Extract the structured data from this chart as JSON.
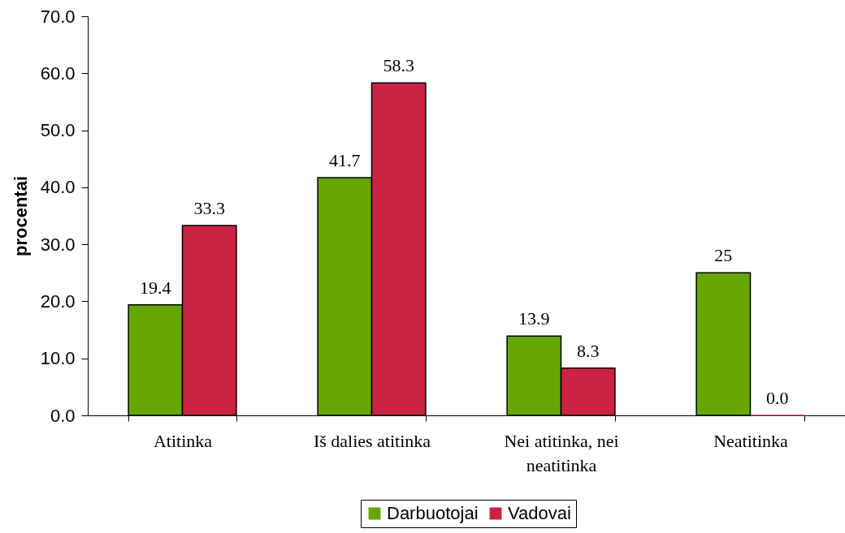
{
  "chart_data": {
    "type": "bar",
    "ylabel": "procentai",
    "categories": [
      "Atitinka",
      "Iš dalies atitinka",
      "Nei atitinka, nei neatitinka",
      "Neatitinka"
    ],
    "series": [
      {
        "name": "Darbuotojai",
        "color": "#66a800",
        "values": [
          19.4,
          41.7,
          13.9,
          25
        ],
        "value_labels": [
          "19.4",
          "41.7",
          "13.9",
          "25"
        ]
      },
      {
        "name": "Vadovai",
        "color": "#cc2244",
        "values": [
          33.3,
          58.3,
          8.3,
          0.0
        ],
        "value_labels": [
          "33.3",
          "58.3",
          "8.3",
          "0.0"
        ]
      }
    ],
    "ylim": [
      0,
      70
    ],
    "yticks": [
      {
        "value": 0,
        "label": "0.0"
      },
      {
        "value": 10,
        "label": "10.0"
      },
      {
        "value": 20,
        "label": "20.0"
      },
      {
        "value": 30,
        "label": "30.0"
      },
      {
        "value": 40,
        "label": "40.0"
      },
      {
        "value": 50,
        "label": "50.0"
      },
      {
        "value": 60,
        "label": "60.0"
      },
      {
        "value": 70,
        "label": "70.0"
      }
    ],
    "legend": "bottom"
  }
}
